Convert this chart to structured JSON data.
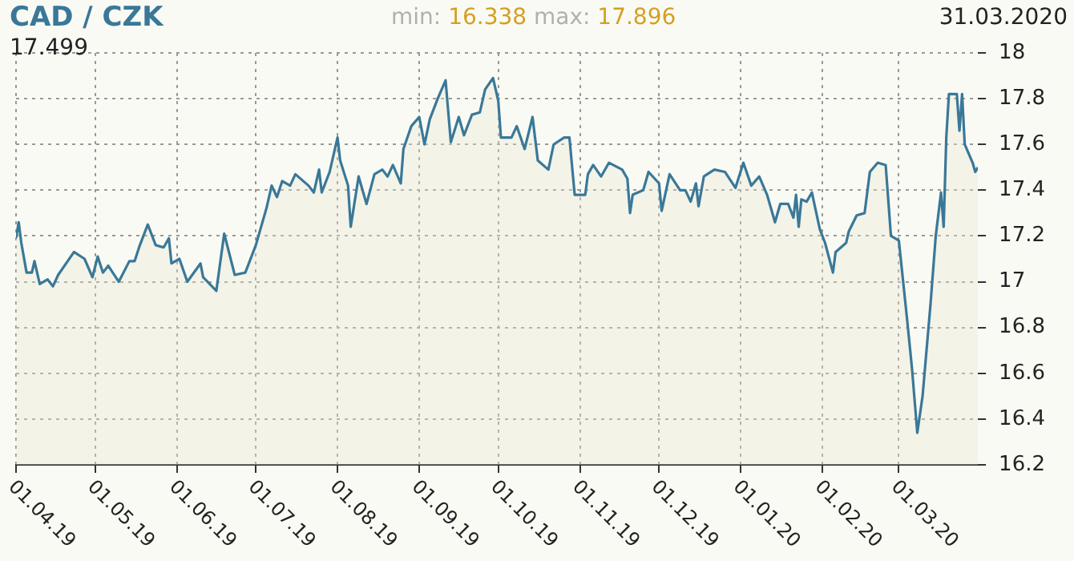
{
  "chart_data": {
    "type": "area",
    "title": "CAD / CZK",
    "annotations": [
      "min: 16.338",
      "max: 17.896",
      "31.03.2020",
      "17.499"
    ],
    "x": [
      "2019-04-01",
      "2019-04-02",
      "2019-04-03",
      "2019-04-05",
      "2019-04-07",
      "2019-04-08",
      "2019-04-10",
      "2019-04-13",
      "2019-04-15",
      "2019-04-17",
      "2019-04-23",
      "2019-04-27",
      "2019-04-30",
      "2019-05-02",
      "2019-05-04",
      "2019-05-06",
      "2019-05-10",
      "2019-05-14",
      "2019-05-16",
      "2019-05-18",
      "2019-05-21",
      "2019-05-24",
      "2019-05-27",
      "2019-05-29",
      "2019-05-30",
      "2019-06-02",
      "2019-06-05",
      "2019-06-10",
      "2019-06-11",
      "2019-06-16",
      "2019-06-19",
      "2019-06-23",
      "2019-06-27",
      "2019-07-01",
      "2019-07-05",
      "2019-07-07",
      "2019-07-09",
      "2019-07-11",
      "2019-07-14",
      "2019-07-16",
      "2019-07-21",
      "2019-07-23",
      "2019-07-25",
      "2019-07-26",
      "2019-07-29",
      "2019-08-01",
      "2019-08-02",
      "2019-08-05",
      "2019-08-06",
      "2019-08-09",
      "2019-08-12",
      "2019-08-15",
      "2019-08-18",
      "2019-08-20",
      "2019-08-22",
      "2019-08-25",
      "2019-08-26",
      "2019-08-29",
      "2019-09-01",
      "2019-09-03",
      "2019-09-05",
      "2019-09-08",
      "2019-09-11",
      "2019-09-13",
      "2019-09-16",
      "2019-09-18",
      "2019-09-21",
      "2019-09-24",
      "2019-09-26",
      "2019-09-29",
      "2019-10-01",
      "2019-10-02",
      "2019-10-06",
      "2019-10-08",
      "2019-10-11",
      "2019-10-14",
      "2019-10-16",
      "2019-10-20",
      "2019-10-22",
      "2019-10-26",
      "2019-10-28",
      "2019-10-30",
      "2019-11-03",
      "2019-11-04",
      "2019-11-06",
      "2019-11-09",
      "2019-11-12",
      "2019-11-17",
      "2019-11-19",
      "2019-11-20",
      "2019-11-21",
      "2019-11-25",
      "2019-11-27",
      "2019-12-01",
      "2019-12-02",
      "2019-12-05",
      "2019-12-09",
      "2019-12-11",
      "2019-12-13",
      "2019-12-15",
      "2019-12-16",
      "2019-12-18",
      "2019-12-22",
      "2019-12-26",
      "2019-12-30",
      "2020-01-02",
      "2020-01-05",
      "2020-01-08",
      "2020-01-11",
      "2020-01-14",
      "2020-01-16",
      "2020-01-19",
      "2020-01-21",
      "2020-01-22",
      "2020-01-23",
      "2020-01-24",
      "2020-01-26",
      "2020-01-28",
      "2020-01-31",
      "2020-02-02",
      "2020-02-05",
      "2020-02-06",
      "2020-02-10",
      "2020-02-11",
      "2020-02-14",
      "2020-02-17",
      "2020-02-19",
      "2020-02-22",
      "2020-02-25",
      "2020-02-27",
      "2020-03-01",
      "2020-03-04",
      "2020-03-06",
      "2020-03-08",
      "2020-03-10",
      "2020-03-13",
      "2020-03-15",
      "2020-03-17",
      "2020-03-18",
      "2020-03-19",
      "2020-03-20",
      "2020-03-23",
      "2020-03-24",
      "2020-03-25",
      "2020-03-26",
      "2020-03-29",
      "2020-03-30",
      "2020-03-31"
    ],
    "series": [
      {
        "color": "#3a7898",
        "values": [
          17.19,
          17.26,
          17.17,
          17.04,
          17.04,
          17.09,
          16.99,
          17.01,
          16.98,
          17.03,
          17.13,
          17.1,
          17.02,
          17.11,
          17.04,
          17.07,
          17.0,
          17.09,
          17.09,
          17.16,
          17.25,
          17.16,
          17.15,
          17.19,
          17.08,
          17.1,
          17.0,
          17.08,
          17.02,
          16.96,
          17.21,
          17.03,
          17.04,
          17.16,
          17.32,
          17.42,
          17.37,
          17.44,
          17.42,
          17.47,
          17.42,
          17.39,
          17.49,
          17.39,
          17.48,
          17.63,
          17.53,
          17.42,
          17.24,
          17.46,
          17.34,
          17.47,
          17.49,
          17.46,
          17.51,
          17.43,
          17.58,
          17.68,
          17.72,
          17.6,
          17.71,
          17.8,
          17.88,
          17.61,
          17.72,
          17.64,
          17.73,
          17.74,
          17.84,
          17.89,
          17.79,
          17.63,
          17.63,
          17.68,
          17.58,
          17.72,
          17.53,
          17.49,
          17.6,
          17.63,
          17.63,
          17.38,
          17.38,
          17.47,
          17.51,
          17.46,
          17.52,
          17.49,
          17.45,
          17.3,
          17.38,
          17.4,
          17.48,
          17.43,
          17.31,
          17.47,
          17.4,
          17.4,
          17.35,
          17.43,
          17.33,
          17.46,
          17.49,
          17.48,
          17.41,
          17.52,
          17.42,
          17.46,
          17.38,
          17.26,
          17.34,
          17.34,
          17.28,
          17.38,
          17.24,
          17.36,
          17.35,
          17.39,
          17.23,
          17.17,
          17.04,
          17.13,
          17.17,
          17.22,
          17.29,
          17.3,
          17.48,
          17.52,
          17.51,
          17.2,
          17.18,
          16.85,
          16.62,
          16.34,
          16.5,
          16.9,
          17.2,
          17.39,
          17.24,
          17.63,
          17.82,
          17.82,
          17.66,
          17.82,
          17.6,
          17.52,
          17.48,
          17.5
        ]
      }
    ],
    "xlim": [
      "2019-04-01",
      "2020-03-31"
    ],
    "xticks": [
      {
        "value": "2019-04-01",
        "label": "01.04.19"
      },
      {
        "value": "2019-05-01",
        "label": "01.05.19"
      },
      {
        "value": "2019-06-01",
        "label": "01.06.19"
      },
      {
        "value": "2019-07-01",
        "label": "01.07.19"
      },
      {
        "value": "2019-08-01",
        "label": "01.08.19"
      },
      {
        "value": "2019-09-01",
        "label": "01.09.19"
      },
      {
        "value": "2019-10-01",
        "label": "01.10.19"
      },
      {
        "value": "2019-11-01",
        "label": "01.11.19"
      },
      {
        "value": "2019-12-01",
        "label": "01.12.19"
      },
      {
        "value": "2020-01-01",
        "label": "01.01.20"
      },
      {
        "value": "2020-02-01",
        "label": "01.02.20"
      },
      {
        "value": "2020-03-01",
        "label": "01.03.20"
      }
    ],
    "ylim": [
      16.2,
      18
    ],
    "yticks": [
      16.2,
      16.4,
      16.6,
      16.8,
      17,
      17.2,
      17.4,
      17.6,
      17.8,
      18
    ],
    "grid": true,
    "marker": "none",
    "line_style": "solid"
  }
}
